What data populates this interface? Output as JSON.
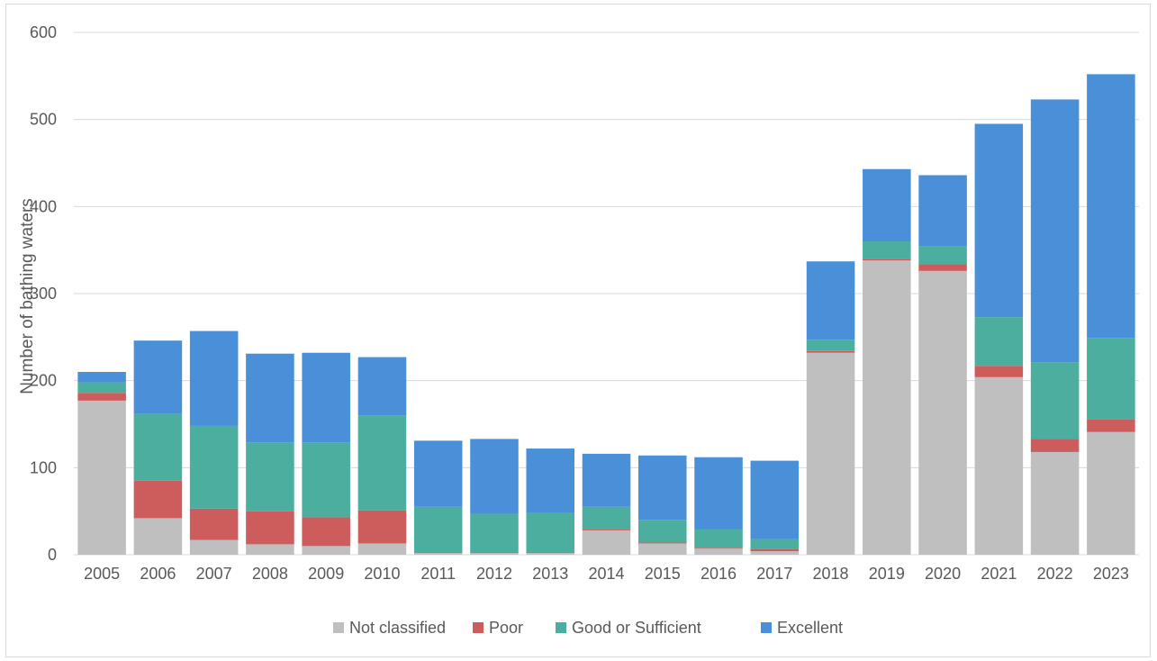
{
  "chart_data": {
    "type": "bar",
    "stacked": true,
    "title": "",
    "xlabel": "",
    "ylabel": "Number of bathing waters",
    "ylim": [
      0,
      600
    ],
    "yticks": [
      0,
      100,
      200,
      300,
      400,
      500,
      600
    ],
    "grid": true,
    "legend_position": "bottom",
    "categories": [
      "2005",
      "2006",
      "2007",
      "2008",
      "2009",
      "2010",
      "2011",
      "2012",
      "2013",
      "2014",
      "2015",
      "2016",
      "2017",
      "2018",
      "2019",
      "2020",
      "2021",
      "2022",
      "2023"
    ],
    "series": [
      {
        "name": "Not classified",
        "color": "#bfbfbf",
        "values": [
          177,
          42,
          17,
          12,
          10,
          13,
          2,
          2,
          2,
          28,
          13,
          7,
          4,
          232,
          338,
          326,
          204,
          118,
          141
        ]
      },
      {
        "name": "Poor",
        "color": "#cd5c5c",
        "values": [
          9,
          43,
          36,
          38,
          33,
          38,
          1,
          1,
          1,
          1,
          1,
          1,
          3,
          2,
          2,
          8,
          13,
          15,
          15
        ]
      },
      {
        "name": "Good or Sufficient",
        "color": "#4cae9f",
        "values": [
          12,
          77,
          95,
          79,
          86,
          109,
          52,
          44,
          45,
          26,
          26,
          21,
          11,
          13,
          20,
          20,
          56,
          88,
          93
        ]
      },
      {
        "name": "Excellent",
        "color": "#4a90d9",
        "values": [
          12,
          84,
          109,
          102,
          103,
          67,
          76,
          86,
          74,
          61,
          74,
          83,
          90,
          90,
          83,
          82,
          222,
          302,
          303
        ]
      }
    ]
  }
}
